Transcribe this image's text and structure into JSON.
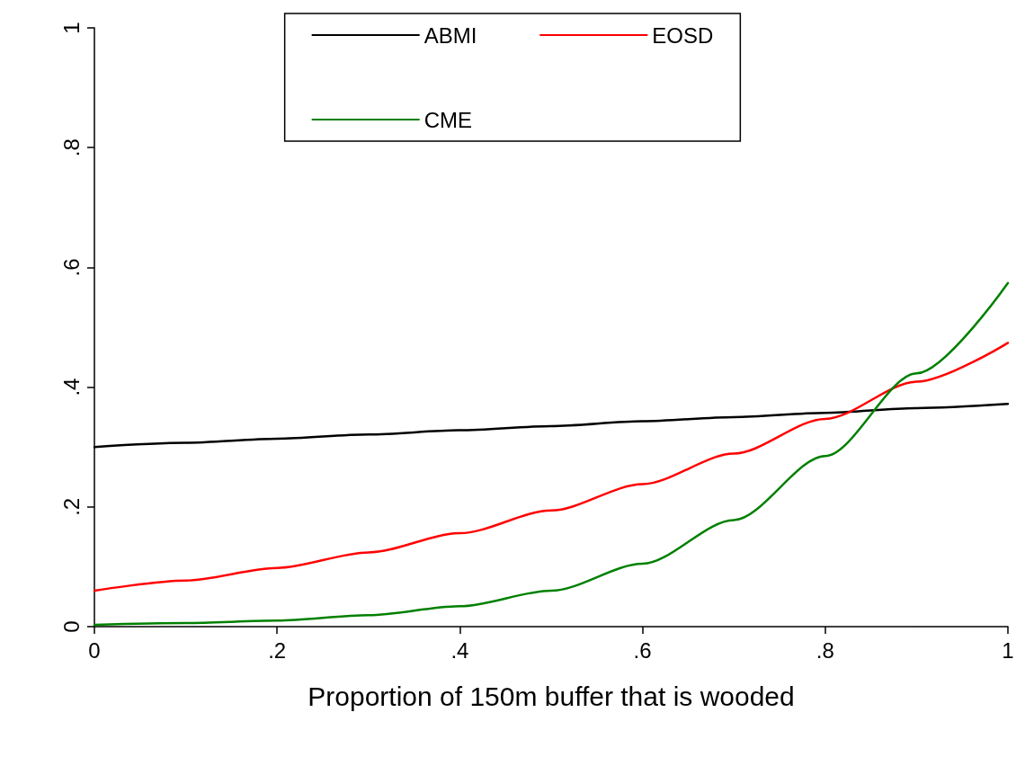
{
  "chart_data": {
    "type": "line",
    "xlabel": "Proportion of 150m buffer that is wooded",
    "x": [
      0,
      0.1,
      0.2,
      0.3,
      0.4,
      0.5,
      0.6,
      0.7,
      0.8,
      0.9,
      1
    ],
    "series": [
      {
        "name": "ABMI",
        "color": "#000000",
        "values": [
          0.3,
          0.307,
          0.314,
          0.321,
          0.328,
          0.335,
          0.343,
          0.35,
          0.357,
          0.365,
          0.372
        ]
      },
      {
        "name": "EOSD",
        "color": "#ff0000",
        "values": [
          0.06,
          0.077,
          0.098,
          0.124,
          0.156,
          0.194,
          0.238,
          0.289,
          0.347,
          0.409,
          0.474
        ]
      },
      {
        "name": "CME",
        "color": "#008000",
        "values": [
          0.003,
          0.006,
          0.01,
          0.019,
          0.034,
          0.06,
          0.105,
          0.178,
          0.285,
          0.423,
          0.574
        ]
      }
    ],
    "xlim": [
      0,
      1
    ],
    "ylim": [
      0,
      1
    ],
    "xticks": [
      0,
      {
        "value": 0.2,
        "label": ".2"
      },
      {
        "value": 0.4,
        "label": ".4"
      },
      {
        "value": 0.6,
        "label": ".6"
      },
      {
        "value": 0.8,
        "label": ".8"
      },
      1
    ],
    "yticks": [
      0,
      {
        "value": 0.2,
        "label": ".2"
      },
      {
        "value": 0.4,
        "label": ".4"
      },
      {
        "value": 0.6,
        "label": ".6"
      },
      {
        "value": 0.8,
        "label": ".8"
      },
      1
    ],
    "grid": false,
    "legend": "top",
    "marker": "none",
    "line_style": "solid"
  }
}
